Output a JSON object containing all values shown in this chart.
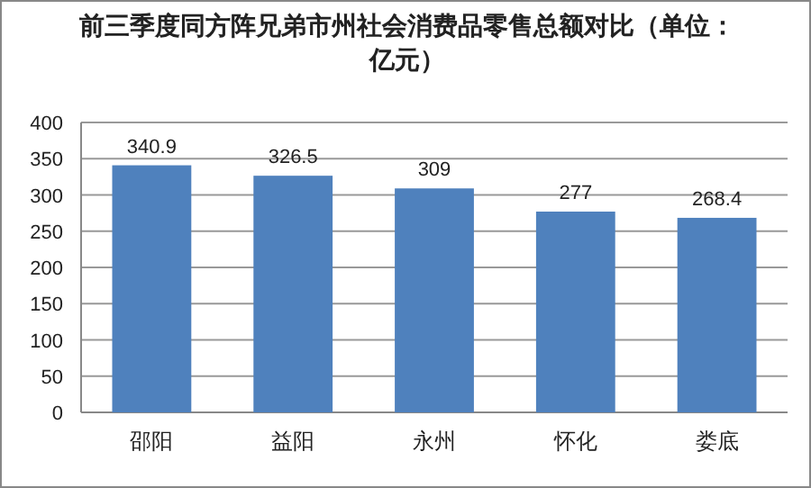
{
  "chart_data": {
    "type": "bar",
    "title": "前三季度同方阵兄弟市州社会消费品零售总额对比（单位：亿元）",
    "categories": [
      "邵阳",
      "益阳",
      "永州",
      "怀化",
      "娄底"
    ],
    "values": [
      340.9,
      326.5,
      309,
      277,
      268.4
    ],
    "color": "#4f81bd",
    "ylim": [
      0,
      400
    ],
    "yticks": [
      0,
      50,
      100,
      150,
      200,
      250,
      300,
      350,
      400
    ],
    "grid": "y",
    "data_labels": true
  }
}
